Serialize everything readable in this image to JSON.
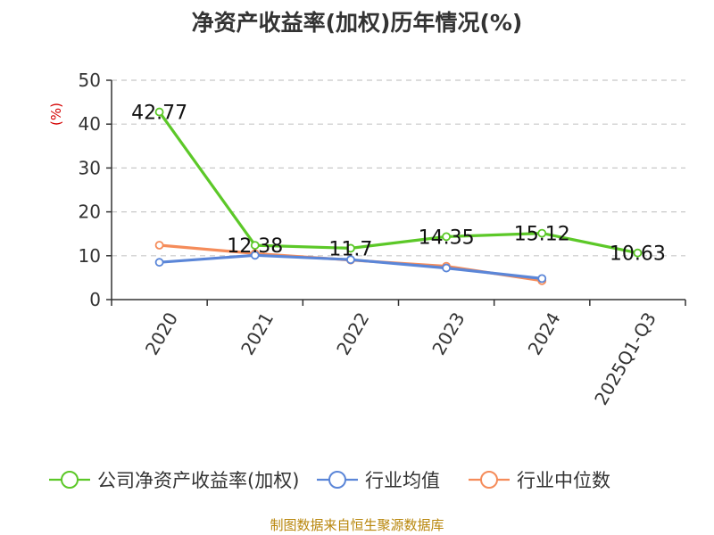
{
  "chart_data": {
    "type": "line",
    "title": "净资产收益率(加权)历年情况(%)",
    "ylabel": "(%)",
    "categories": [
      "2020",
      "2021",
      "2022",
      "2023",
      "2024",
      "2025Q1-Q3"
    ],
    "ylim": [
      0,
      50
    ],
    "yticks": [
      0,
      10,
      20,
      30,
      40,
      50
    ],
    "grid": true,
    "legend_position": "bottom",
    "series": [
      {
        "name": "公司净资产收益率(加权)",
        "color": "#5cc828",
        "values": [
          42.77,
          12.38,
          11.7,
          14.35,
          15.12,
          10.63
        ],
        "show_labels": true
      },
      {
        "name": "行业均值",
        "color": "#5b86d8",
        "values": [
          8.5,
          10.1,
          9.1,
          7.2,
          4.8,
          null
        ],
        "show_labels": false
      },
      {
        "name": "行业中位数",
        "color": "#f58c5a",
        "values": [
          12.4,
          10.5,
          9.0,
          7.6,
          4.3,
          null
        ],
        "show_labels": false
      }
    ]
  },
  "footer": {
    "source": "制图数据来自恒生聚源数据库"
  }
}
